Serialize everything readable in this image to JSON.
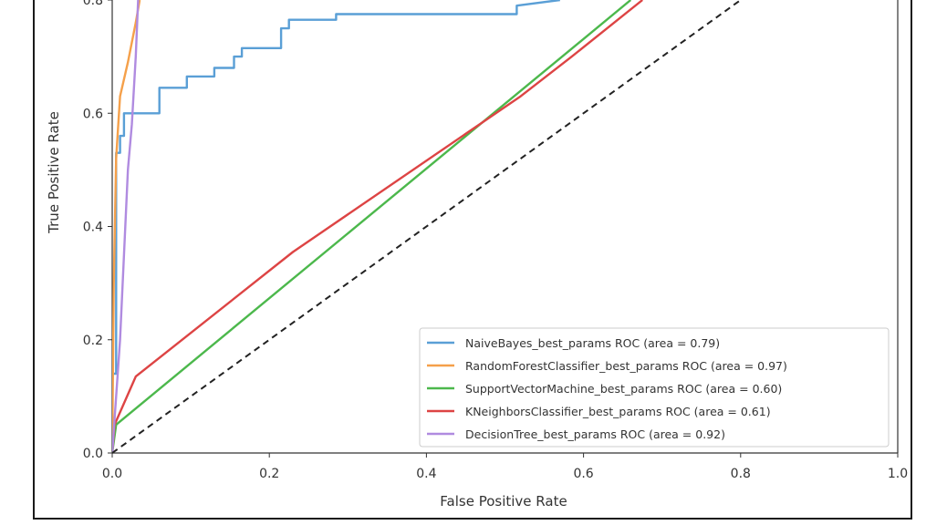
{
  "chart_data": {
    "type": "line",
    "title": "",
    "xlabel": "False Positive Rate",
    "ylabel": "True Positive Rate",
    "xlim": [
      0,
      1
    ],
    "ylim": [
      0,
      0.8
    ],
    "xticks": [
      "0.0",
      "0.2",
      "0.4",
      "0.6",
      "0.8",
      "1.0"
    ],
    "yticks": [
      "0.0",
      "0.2",
      "0.4",
      "0.6",
      "0.8"
    ],
    "legend_position": "lower-right",
    "grid": false,
    "series": [
      {
        "name": "NaiveBayes_best_params ROC (area = 0.79)",
        "color": "#5a9fd6",
        "x": [
          0.0,
          0.0,
          0.005,
          0.005,
          0.01,
          0.01,
          0.015,
          0.015,
          0.025,
          0.025,
          0.06,
          0.06,
          0.095,
          0.095,
          0.13,
          0.13,
          0.155,
          0.155,
          0.165,
          0.165,
          0.215,
          0.215,
          0.225,
          0.225,
          0.285,
          0.285,
          0.515,
          0.515,
          0.57
        ],
        "y": [
          0.0,
          0.14,
          0.14,
          0.53,
          0.53,
          0.56,
          0.56,
          0.6,
          0.6,
          0.6,
          0.6,
          0.645,
          0.645,
          0.665,
          0.665,
          0.68,
          0.68,
          0.7,
          0.7,
          0.715,
          0.715,
          0.75,
          0.75,
          0.765,
          0.765,
          0.775,
          0.775,
          0.79,
          0.8
        ]
      },
      {
        "name": "RandomForestClassifier_best_params ROC (area = 0.97)",
        "color": "#f5a04a",
        "x": [
          0.0,
          0.002,
          0.005,
          0.01,
          0.02,
          0.03,
          0.035
        ],
        "y": [
          0.0,
          0.3,
          0.52,
          0.63,
          0.69,
          0.76,
          0.8
        ]
      },
      {
        "name": "SupportVectorMachine_best_params ROC (area = 0.60)",
        "color": "#4cb84c",
        "x": [
          0.0,
          0.005,
          0.66
        ],
        "y": [
          0.0,
          0.05,
          0.8
        ]
      },
      {
        "name": "KNeighborsClassifier_best_params ROC (area = 0.61)",
        "color": "#dd4444",
        "x": [
          0.0,
          0.003,
          0.03,
          0.23,
          0.52,
          0.585,
          0.675
        ],
        "y": [
          0.0,
          0.05,
          0.135,
          0.355,
          0.63,
          0.7,
          0.8
        ]
      },
      {
        "name": "DecisionTree_best_params ROC (area = 0.92)",
        "color": "#b08be0",
        "x": [
          0.0,
          0.01,
          0.02,
          0.025,
          0.03,
          0.033
        ],
        "y": [
          0.0,
          0.2,
          0.5,
          0.58,
          0.7,
          0.8
        ]
      },
      {
        "color": "#222222",
        "dash": true,
        "x": [
          0.0,
          0.8
        ],
        "y": [
          0.0,
          0.8
        ]
      }
    ]
  }
}
